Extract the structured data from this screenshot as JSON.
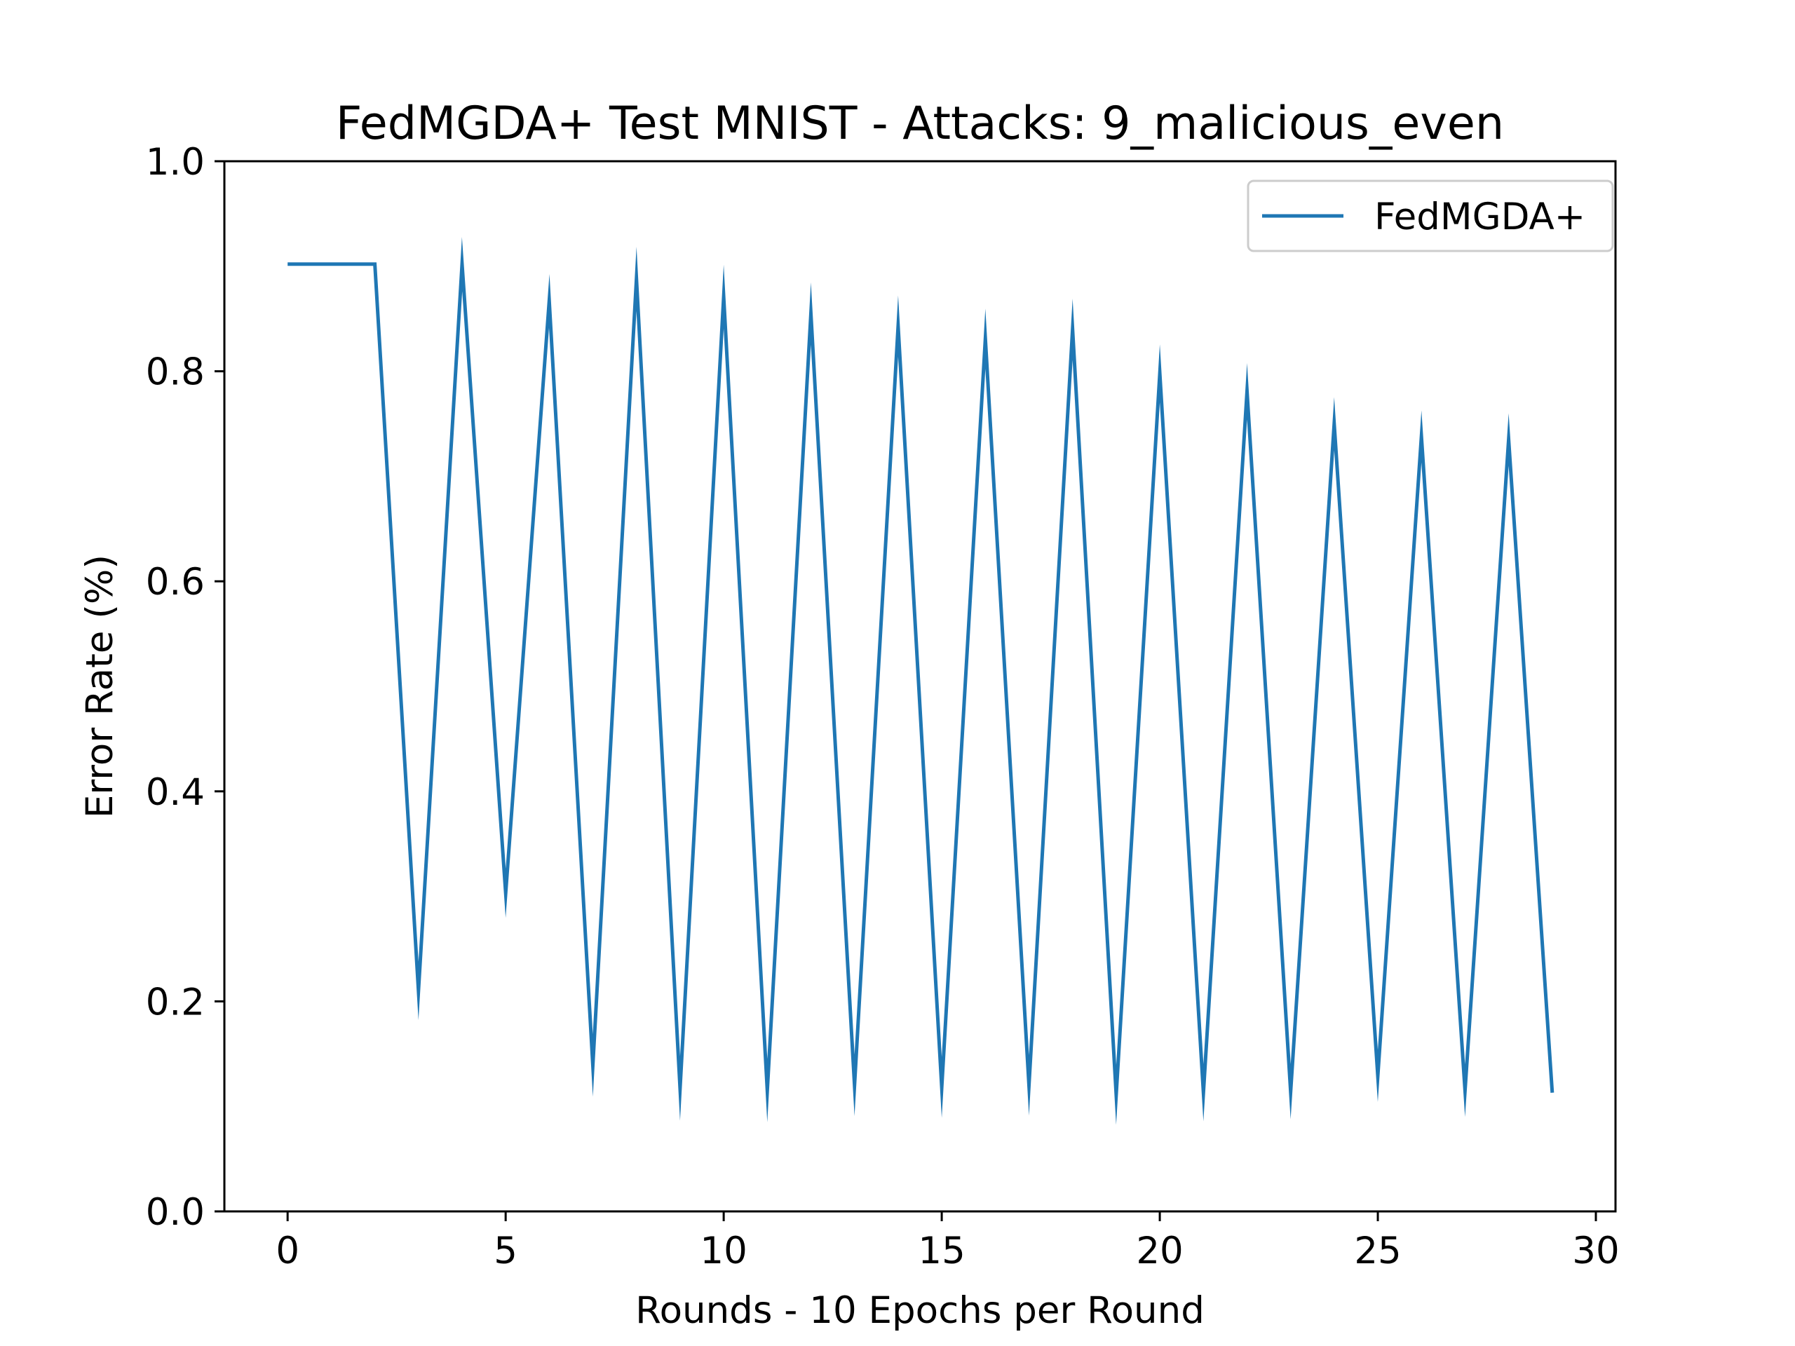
{
  "chart_data": {
    "type": "line",
    "title": "FedMGDA+ Test MNIST - Attacks: 9_malicious_even",
    "xlabel": "Rounds - 10 Epochs per Round",
    "ylabel": "Error Rate (%)",
    "xlim": [
      -1.45,
      30.45
    ],
    "ylim": [
      0.0,
      1.0
    ],
    "xticks": [
      0,
      5,
      10,
      15,
      20,
      25,
      30
    ],
    "xtick_labels": [
      "0",
      "5",
      "10",
      "15",
      "20",
      "25",
      "30"
    ],
    "yticks": [
      0.0,
      0.2,
      0.4,
      0.6,
      0.8,
      1.0
    ],
    "ytick_labels": [
      "0.0",
      "0.2",
      "0.4",
      "0.6",
      "0.8",
      "1.0"
    ],
    "grid": false,
    "legend_position": "top-right",
    "series": [
      {
        "name": "FedMGDA+",
        "color": "#1f77b4",
        "x": [
          0,
          1,
          2,
          3,
          4,
          5,
          6,
          7,
          8,
          9,
          10,
          11,
          12,
          13,
          14,
          15,
          16,
          17,
          18,
          19,
          20,
          21,
          22,
          23,
          24,
          25,
          26,
          27,
          28,
          29
        ],
        "y": [
          0.902,
          0.902,
          0.902,
          0.21,
          0.902,
          0.303,
          0.867,
          0.139,
          0.888,
          0.117,
          0.871,
          0.115,
          0.855,
          0.12,
          0.843,
          0.118,
          0.831,
          0.12,
          0.84,
          0.111,
          0.798,
          0.113,
          0.781,
          0.114,
          0.75,
          0.129,
          0.738,
          0.115,
          0.735,
          0.113
        ]
      }
    ]
  }
}
